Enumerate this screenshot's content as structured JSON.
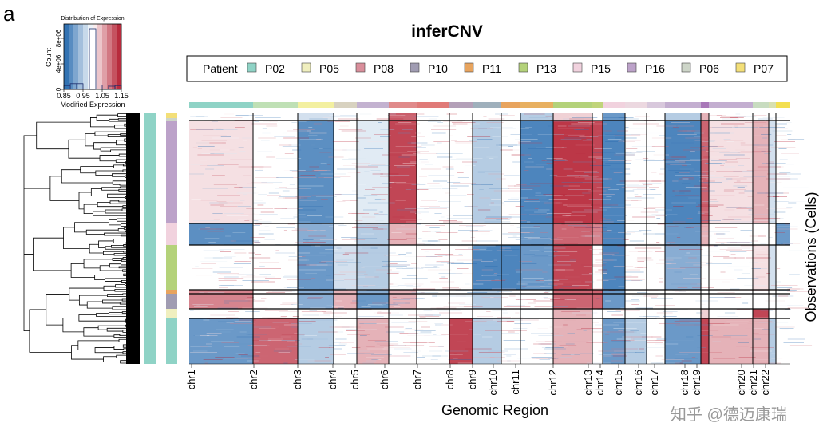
{
  "panel_label": "a",
  "chart_data": {
    "type": "heatmap",
    "title": "inferCNV",
    "xlabel": "Genomic Region",
    "ylabel": "Observations (Cells)",
    "color_key": {
      "title": "Distribution of Expression",
      "xlabel": "Modified Expression",
      "ylabel": "Count",
      "x_ticks": [
        "0.85",
        "0.95",
        "1.05",
        "1.15"
      ],
      "y_ticks": [
        "0",
        "4e+06",
        "8e+06"
      ],
      "range": [
        0.85,
        1.15
      ],
      "low_color": "#2166ac",
      "mid_color": "#ffffff",
      "high_color": "#b2182b",
      "histogram": [
        600000.0,
        900000.0,
        900000.0,
        0,
        9500000.0,
        0,
        700000.0,
        500000.0,
        600000.0
      ]
    },
    "legend": {
      "title": "Patient",
      "placement": "top",
      "entries": [
        {
          "label": "P02",
          "color": "#8fd3c6"
        },
        {
          "label": "P05",
          "color": "#f0efbf"
        },
        {
          "label": "P08",
          "color": "#d98e9b"
        },
        {
          "label": "P10",
          "color": "#a09cb2"
        },
        {
          "label": "P11",
          "color": "#e8a45e"
        },
        {
          "label": "P13",
          "color": "#b4d27a"
        },
        {
          "label": "P15",
          "color": "#f1d2de"
        },
        {
          "label": "P16",
          "color": "#bca2c9"
        },
        {
          "label": "P06",
          "color": "#cdd5c8"
        },
        {
          "label": "P07",
          "color": "#f3df78"
        }
      ]
    },
    "chromosomes": [
      "chr1",
      "chr2",
      "chr3",
      "chr4",
      "chr5",
      "chr6",
      "chr7",
      "chr8",
      "chr9",
      "chr10",
      "chr11",
      "chr12",
      "chr13",
      "chr14",
      "chr15",
      "chr16",
      "chr17",
      "chr18",
      "chr19",
      "chr20",
      "chr21",
      "chr22"
    ],
    "row_groups": [
      {
        "patient": "P07",
        "cnv": [
          1.0,
          1.0,
          0.97,
          1.0,
          1.0,
          1.1,
          1.0,
          1.0,
          1.0,
          1.0,
          0.95,
          1.03,
          1.0,
          0.9,
          1.0,
          1.0,
          0.95,
          1.05,
          1.0,
          1.0,
          1.0,
          1.0
        ]
      },
      {
        "patient": "P16",
        "cnv": [
          1.02,
          1.0,
          0.89,
          1.0,
          0.98,
          1.12,
          1.0,
          1.0,
          0.95,
          1.0,
          0.88,
          1.13,
          1.12,
          0.88,
          1.0,
          1.0,
          0.88,
          1.1,
          1.02,
          1.05,
          0.97,
          1.0
        ]
      },
      {
        "patient": "P15",
        "cnv": [
          0.89,
          1.0,
          0.92,
          1.0,
          0.95,
          1.05,
          1.0,
          1.0,
          1.0,
          1.0,
          0.9,
          1.1,
          1.08,
          0.88,
          1.0,
          1.0,
          0.9,
          1.05,
          1.0,
          1.0,
          1.0,
          0.9
        ]
      },
      {
        "patient": "P13",
        "cnv": [
          1.0,
          1.0,
          0.9,
          0.97,
          0.95,
          1.0,
          1.0,
          1.0,
          0.88,
          0.88,
          0.9,
          1.12,
          1.0,
          0.88,
          1.0,
          1.0,
          0.92,
          1.0,
          1.0,
          1.02,
          0.97,
          1.0
        ]
      },
      {
        "patient": "P11",
        "cnv": [
          1.08,
          1.0,
          0.92,
          1.05,
          0.92,
          1.05,
          1.0,
          1.0,
          0.95,
          1.0,
          1.0,
          1.1,
          1.1,
          0.9,
          1.0,
          1.0,
          1.0,
          1.0,
          1.0,
          1.0,
          1.0,
          1.0
        ]
      },
      {
        "patient": "P10",
        "cnv": [
          1.08,
          1.0,
          0.92,
          1.05,
          0.9,
          1.05,
          1.0,
          1.0,
          0.95,
          1.0,
          1.0,
          1.1,
          1.1,
          0.9,
          1.0,
          1.0,
          1.0,
          1.0,
          1.0,
          1.0,
          1.0,
          1.0
        ]
      },
      {
        "patient": "P05",
        "cnv": [
          1.0,
          1.0,
          1.0,
          1.0,
          1.0,
          1.0,
          1.0,
          1.0,
          1.0,
          1.0,
          1.0,
          1.05,
          1.0,
          1.0,
          1.0,
          1.0,
          1.0,
          1.03,
          1.0,
          1.12,
          1.0,
          1.0
        ]
      },
      {
        "patient": "P02",
        "cnv": [
          0.9,
          1.1,
          0.95,
          1.0,
          1.05,
          1.0,
          1.0,
          1.12,
          0.95,
          1.0,
          1.0,
          1.05,
          1.0,
          0.9,
          0.95,
          1.0,
          0.9,
          1.12,
          1.05,
          1.05,
          0.95,
          1.0
        ]
      }
    ],
    "chromosome_bar_colors": [
      "#8fd3c6",
      "#bfe0b5",
      "#f3f0a0",
      "#d8d2c0",
      "#c3b2d0",
      "#e08a8a",
      "#e07a78",
      "#b4a0b8",
      "#9fb0bc",
      "#e8a45e",
      "#e8b060",
      "#b4d27a",
      "#c0d47a",
      "#f1d2de",
      "#ecd8e0",
      "#d8c8dc",
      "#c3aed0",
      "#a878b8",
      "#c3aed0",
      "#c8dcc0",
      "#d8e0b0",
      "#f3df50"
    ]
  },
  "watermark": "知乎 @德迈康瑞"
}
